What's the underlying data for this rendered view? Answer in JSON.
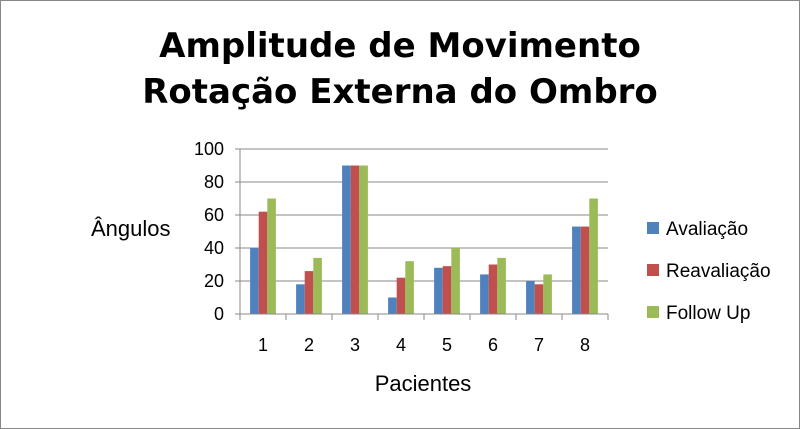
{
  "chart_data": {
    "type": "bar",
    "title": [
      "Amplitude de Movimento",
      "Rotação Externa do Ombro"
    ],
    "xlabel": "Pacientes",
    "ylabel": "Ângulos",
    "ylim": [
      0,
      100
    ],
    "yticks": [
      0,
      20,
      40,
      60,
      80,
      100
    ],
    "grid": true,
    "legend_position": "right",
    "categories": [
      "1",
      "2",
      "3",
      "4",
      "5",
      "6",
      "7",
      "8"
    ],
    "series": [
      {
        "name": "Avaliação",
        "color": "#4F81BD",
        "values": [
          40,
          18,
          90,
          10,
          28,
          24,
          20,
          53
        ]
      },
      {
        "name": "Reavaliação",
        "color": "#C0504D",
        "values": [
          62,
          26,
          90,
          22,
          29,
          30,
          18,
          53
        ]
      },
      {
        "name": "Follow Up",
        "color": "#9BBB59",
        "values": [
          70,
          34,
          90,
          32,
          40,
          34,
          24,
          70
        ]
      }
    ]
  }
}
